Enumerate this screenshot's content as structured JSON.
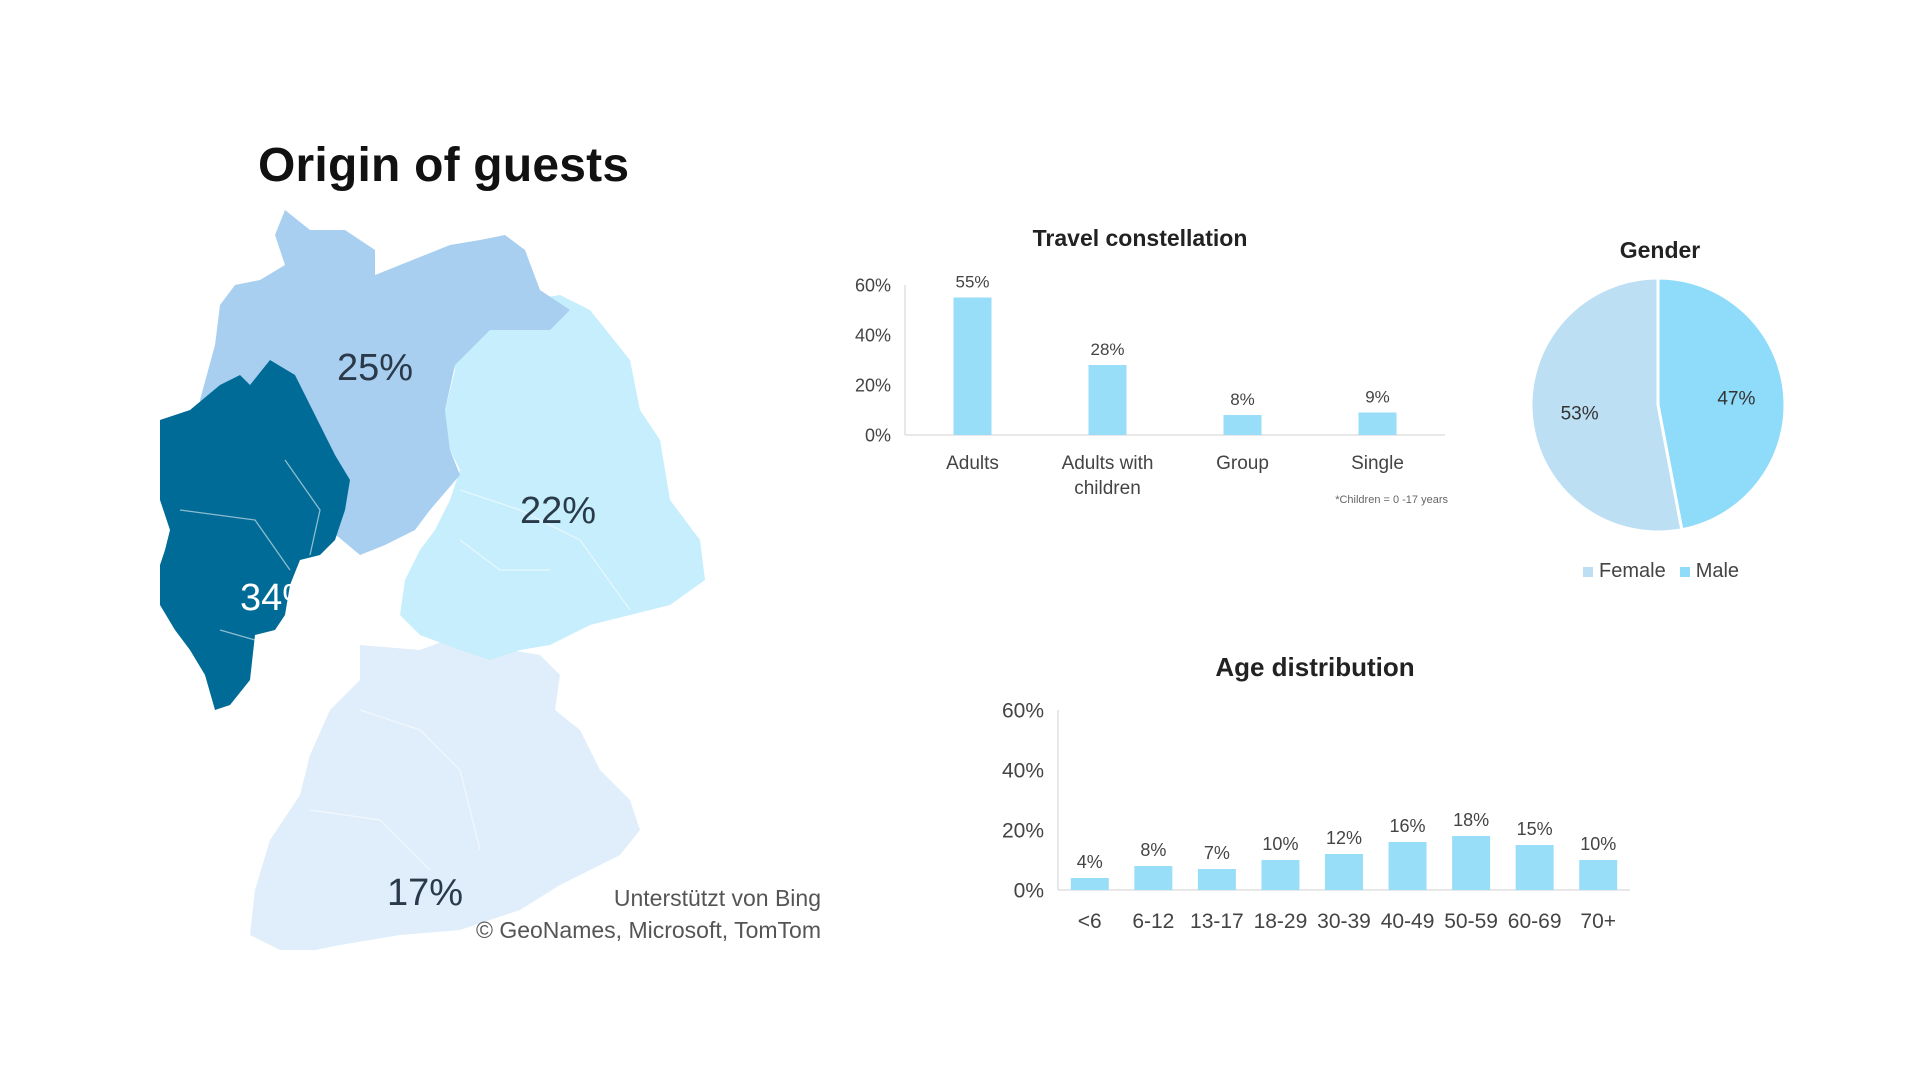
{
  "map": {
    "title": "Origin of guests",
    "credit_line1": "Unterstützt von Bing",
    "credit_line2": "© GeoNames, Microsoft, TomTom",
    "regions": [
      {
        "name": "north",
        "value": "25%",
        "color": "#a9cff0"
      },
      {
        "name": "east",
        "value": "22%",
        "color": "#c6eefc"
      },
      {
        "name": "west",
        "value": "34%",
        "color": "#006b96"
      },
      {
        "name": "south",
        "value": "17%",
        "color": "#dfeefa"
      }
    ]
  },
  "travel": {
    "title": "Travel constellation",
    "note": "*Children = 0 -17 years"
  },
  "gender": {
    "title": "Gender"
  },
  "age": {
    "title": "Age distribution"
  },
  "chart_data": [
    {
      "type": "bar",
      "title": "Travel constellation",
      "categories": [
        "Adults",
        "Adults with children",
        "Group",
        "Single"
      ],
      "values": [
        55,
        28,
        8,
        9
      ],
      "labels": [
        "55%",
        "28%",
        "8%",
        "9%"
      ],
      "yticks": [
        "0%",
        "20%",
        "40%",
        "60%"
      ],
      "ylim": [
        0,
        60
      ],
      "color": "#99def9"
    },
    {
      "type": "pie",
      "title": "Gender",
      "categories": [
        "Female",
        "Male"
      ],
      "values": [
        53,
        47
      ],
      "labels": [
        "53%",
        "47%"
      ],
      "colors": [
        "#bddff4",
        "#8fdcfa"
      ]
    },
    {
      "type": "bar",
      "title": "Age distribution",
      "categories": [
        "<6",
        "6-12",
        "13-17",
        "18-29",
        "30-39",
        "40-49",
        "50-59",
        "60-69",
        "70+"
      ],
      "values": [
        4,
        8,
        7,
        10,
        12,
        16,
        18,
        15,
        10
      ],
      "labels": [
        "4%",
        "8%",
        "7%",
        "10%",
        "12%",
        "16%",
        "18%",
        "15%",
        "10%"
      ],
      "yticks": [
        "0%",
        "20%",
        "40%",
        "60%"
      ],
      "ylim": [
        0,
        60
      ],
      "color": "#99def9"
    }
  ]
}
